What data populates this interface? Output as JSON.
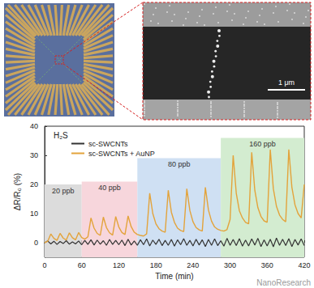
{
  "panels": {
    "scale_bar": "1 μm",
    "watermark": "NanoResearch"
  },
  "chart_data": {
    "type": "line",
    "title": "H₂S",
    "x_label": "Time (min)",
    "y_label": "ΔR/R₀ (%)",
    "xlim": [
      0,
      420
    ],
    "xticks": [
      0,
      60,
      120,
      180,
      240,
      300,
      360,
      420
    ],
    "ylim": [
      -5,
      40
    ],
    "yticks": [
      0,
      10,
      20,
      30,
      40
    ],
    "grid": false,
    "legend": "upper left",
    "regions": [
      {
        "label": "20 ppb",
        "start": 0,
        "end": 60,
        "top": 20,
        "color": "#dcdcdc"
      },
      {
        "label": "40 ppb",
        "start": 60,
        "end": 150,
        "top": 21,
        "color": "#f7d6dc"
      },
      {
        "label": "80 ppb",
        "start": 150,
        "end": 285,
        "top": 29,
        "color": "#cfe0f3"
      },
      {
        "label": "160 ppb",
        "start": 285,
        "end": 420,
        "top": 36,
        "color": "#d3ecd0"
      }
    ],
    "x": [
      0,
      5,
      10,
      15,
      20,
      25,
      30,
      35,
      40,
      45,
      50,
      55,
      60,
      65,
      70,
      75,
      80,
      85,
      90,
      95,
      100,
      105,
      110,
      115,
      120,
      125,
      130,
      135,
      140,
      145,
      150,
      155,
      160,
      165,
      170,
      175,
      180,
      185,
      190,
      195,
      200,
      205,
      210,
      215,
      220,
      225,
      230,
      235,
      240,
      245,
      250,
      255,
      260,
      265,
      270,
      275,
      280,
      285,
      290,
      295,
      300,
      305,
      310,
      315,
      320,
      325,
      330,
      335,
      340,
      345,
      350,
      355,
      360,
      365,
      370,
      375,
      380,
      385,
      390,
      395,
      400,
      405,
      410,
      415,
      420
    ],
    "series": [
      {
        "name": "sc-SWCNTs",
        "color": "#333333",
        "values": [
          0,
          0.6,
          -0.4,
          0.5,
          -0.6,
          0.4,
          -0.3,
          0.7,
          -0.5,
          0.3,
          -0.4,
          0.6,
          -0.7,
          0.8,
          -0.6,
          1,
          -0.8,
          0.9,
          -0.5,
          0.7,
          -0.9,
          1.1,
          -0.6,
          0.8,
          -0.7,
          0.9,
          -1,
          1.2,
          -0.8,
          0.6,
          -0.9,
          1,
          -0.7,
          1.3,
          -1.1,
          0.9,
          -0.6,
          1.2,
          -1,
          0.8,
          -0.9,
          1.1,
          -1.2,
          1,
          -0.7,
          1.4,
          -0.9,
          0.8,
          -1.1,
          1.2,
          -0.8,
          1,
          -1.3,
          1.1,
          -0.9,
          1.3,
          -1,
          0.7,
          -1.2,
          1.5,
          -0.9,
          1.1,
          -1,
          1.4,
          -1.2,
          0.9,
          -1.1,
          1.3,
          -0.8,
          1.5,
          -1.3,
          1,
          -1.1,
          1.2,
          -1.4,
          1.6,
          -0.9,
          1.2,
          -1,
          1.4,
          -1.3,
          1.1,
          -0.8,
          1.3,
          -1
        ]
      },
      {
        "name": "sc-SWCNTs + AuNP",
        "color": "#e3a33b",
        "values": [
          0,
          0.5,
          3,
          1.5,
          0.8,
          3.2,
          1.6,
          0.9,
          3.4,
          1.7,
          1,
          3.5,
          1.8,
          1.2,
          2,
          8.5,
          5,
          3.2,
          2.5,
          8.8,
          5.2,
          3.4,
          2.6,
          9,
          5.4,
          3.5,
          2.8,
          9.2,
          5.5,
          3.6,
          2.8,
          2.5,
          2.3,
          3,
          17,
          10,
          6.5,
          4.8,
          4,
          3.6,
          18,
          10.5,
          7,
          5,
          4.2,
          3.8,
          18.5,
          11,
          7.2,
          5.2,
          4.4,
          4,
          19,
          11.2,
          7.4,
          5.4,
          4.6,
          4.2,
          4,
          4.5,
          8,
          30,
          17,
          11,
          8.5,
          7,
          6.5,
          31,
          18,
          12,
          9,
          7.5,
          7,
          32,
          18.5,
          12.5,
          9.5,
          8,
          7.2,
          32,
          19,
          13,
          10,
          8.5,
          20
        ]
      }
    ]
  }
}
